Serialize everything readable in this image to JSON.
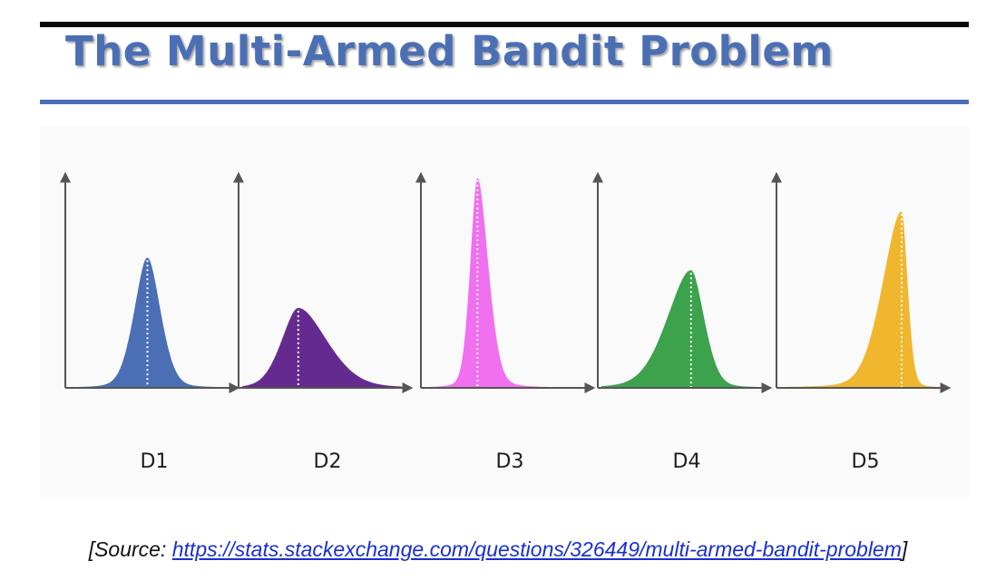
{
  "slide": {
    "title": "The Multi-Armed Bandit Problem"
  },
  "colors": {
    "title": "#4b6fb4",
    "rule": "#4a6fb8",
    "link": "#1a2fd0"
  },
  "distributions": [
    {
      "label": "D1",
      "color": "#4b6fb4",
      "peak_pos": 0.48,
      "peak_height": 0.62,
      "width_left": 0.11,
      "width_right": 0.11
    },
    {
      "label": "D2",
      "color": "#652a8f",
      "peak_pos": 0.34,
      "peak_height": 0.38,
      "width_left": 0.14,
      "width_right": 0.24
    },
    {
      "label": "D3",
      "color": "#f070ef",
      "peak_pos": 0.32,
      "peak_height": 1.0,
      "width_left": 0.06,
      "width_right": 0.09
    },
    {
      "label": "D4",
      "color": "#3da24c",
      "peak_pos": 0.55,
      "peak_height": 0.56,
      "width_left": 0.2,
      "width_right": 0.11
    },
    {
      "label": "D5",
      "color": "#f0b72e",
      "peak_pos": 0.75,
      "peak_height": 0.84,
      "width_left": 0.16,
      "width_right": 0.05
    }
  ],
  "source": {
    "prefix": "[Source: ",
    "link_text": "https://stats.stackexchange.com/questions/326449/multi-armed-bandit-problem",
    "suffix": "]"
  }
}
